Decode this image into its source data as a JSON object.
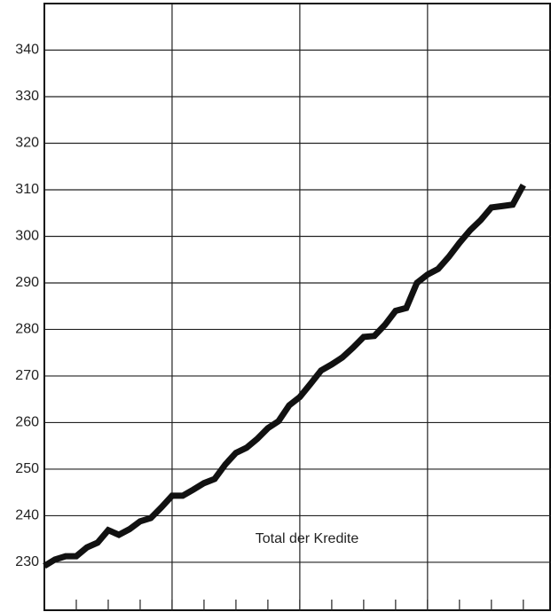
{
  "chart_data": {
    "type": "line",
    "annotation": "Total der Kredite",
    "x": [
      0,
      1,
      2,
      3,
      4,
      5,
      6,
      7,
      8,
      9,
      10,
      11,
      12,
      13,
      14,
      15,
      16,
      17,
      18,
      19,
      20,
      21,
      22,
      23,
      24,
      25,
      26,
      27,
      28,
      29,
      30,
      31,
      32,
      33,
      34,
      35,
      36,
      37,
      38,
      39,
      40,
      41,
      42,
      43,
      44,
      45
    ],
    "series": [
      {
        "name": "Total der Kredite",
        "color": "#111111",
        "values": [
          229.2,
          230.6,
          231.3,
          231.3,
          233.2,
          234.2,
          236.9,
          235.9,
          237.1,
          238.8,
          239.5,
          241.8,
          244.3,
          244.3,
          245.6,
          247.0,
          247.9,
          251.0,
          253.5,
          254.6,
          256.5,
          258.8,
          260.3,
          263.7,
          265.5,
          268.3,
          271.2,
          272.5,
          274.0,
          276.1,
          278.4,
          278.6,
          281.0,
          284.0,
          284.6,
          290.0,
          291.8,
          293.0,
          295.6,
          298.6,
          301.3,
          303.5,
          306.2,
          306.5,
          306.8,
          311.0
        ]
      }
    ],
    "xlim": [
      0,
      47.6
    ],
    "xticks": [
      3,
      6,
      9,
      12,
      15,
      18,
      21,
      24,
      27,
      30,
      33,
      36,
      39,
      42,
      45
    ],
    "xmajor_ticks": [
      12,
      24,
      36
    ],
    "ylim": [
      219.7,
      350
    ],
    "yticks": [
      230,
      240,
      250,
      260,
      270,
      280,
      290,
      300,
      310,
      320,
      330,
      340
    ],
    "grid": true
  }
}
